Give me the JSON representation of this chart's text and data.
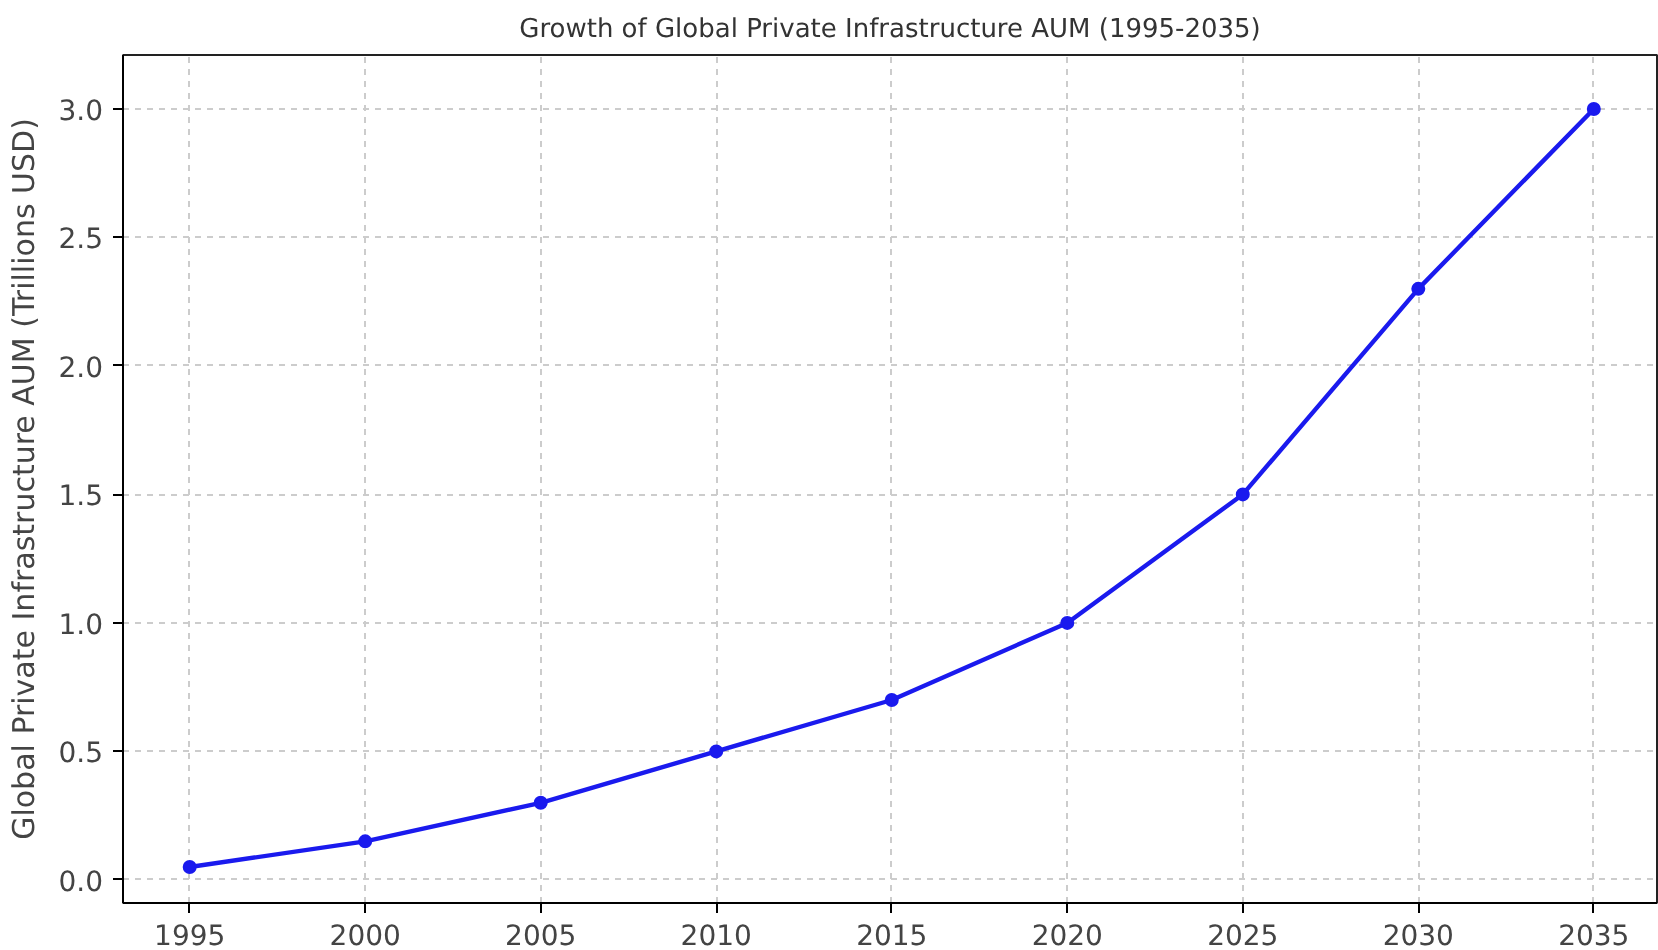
{
  "chart_data": {
    "type": "line",
    "title": "Growth of Global Private Infrastructure AUM (1995-2035)",
    "ylabel": "Global Private Infrastructure AUM (Trillions USD)",
    "x": [
      1995,
      2000,
      2005,
      2010,
      2015,
      2020,
      2025,
      2030,
      2035
    ],
    "series": [
      {
        "color": "#1a1aee",
        "values": [
          0.05,
          0.15,
          0.3,
          0.5,
          0.7,
          1.0,
          1.5,
          2.3,
          3.0
        ]
      }
    ],
    "xlim": [
      1993.1,
      2036.8
    ],
    "ylim": [
      -0.09,
      3.21
    ],
    "xticks": [
      1995,
      2000,
      2005,
      2010,
      2015,
      2020,
      2025,
      2030,
      2035
    ],
    "yticks": [
      {
        "value": 0,
        "label": "0.0"
      },
      {
        "value": 0.5,
        "label": "0.5"
      },
      {
        "value": 1,
        "label": "1.0"
      },
      {
        "value": 1.5,
        "label": "1.5"
      },
      {
        "value": 2,
        "label": "2.0"
      },
      {
        "value": 2.5,
        "label": "2.5"
      },
      {
        "value": 3,
        "label": "3.0"
      }
    ],
    "grid": true,
    "marker": "circle",
    "line_style": "solid"
  }
}
